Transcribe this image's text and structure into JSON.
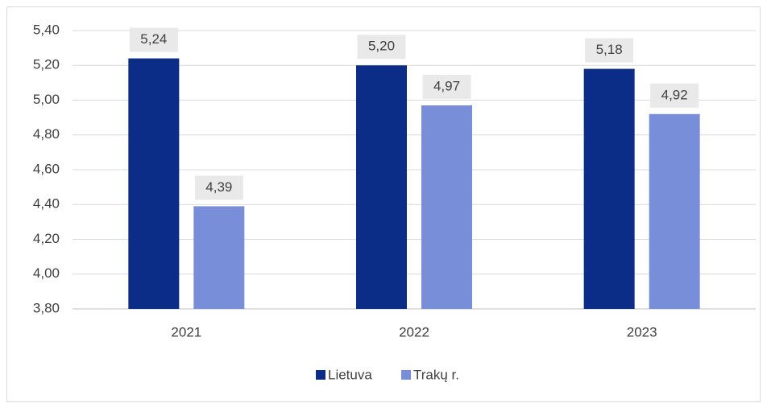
{
  "chart_data": {
    "type": "bar",
    "categories": [
      "2021",
      "2022",
      "2023"
    ],
    "series": [
      {
        "name": "Lietuva",
        "color": "#0b2d87",
        "values": [
          5.24,
          5.2,
          5.18
        ],
        "value_labels": [
          "5,24",
          "5,20",
          "5,18"
        ]
      },
      {
        "name": "Trakų r.",
        "color": "#788ed8",
        "values": [
          4.39,
          4.97,
          4.92
        ],
        "value_labels": [
          "4,39",
          "4,97",
          "4,92"
        ]
      }
    ],
    "ylim": [
      3.8,
      5.4
    ],
    "yticks": [
      {
        "value": 3.8,
        "label": "3,80"
      },
      {
        "value": 4.0,
        "label": "4,00"
      },
      {
        "value": 4.2,
        "label": "4,20"
      },
      {
        "value": 4.4,
        "label": "4,40"
      },
      {
        "value": 4.6,
        "label": "4,60"
      },
      {
        "value": 4.8,
        "label": "4,80"
      },
      {
        "value": 5.0,
        "label": "5,00"
      },
      {
        "value": 5.2,
        "label": "5,20"
      },
      {
        "value": 5.4,
        "label": "5,40"
      }
    ],
    "grid": true,
    "legend": "bottom"
  }
}
